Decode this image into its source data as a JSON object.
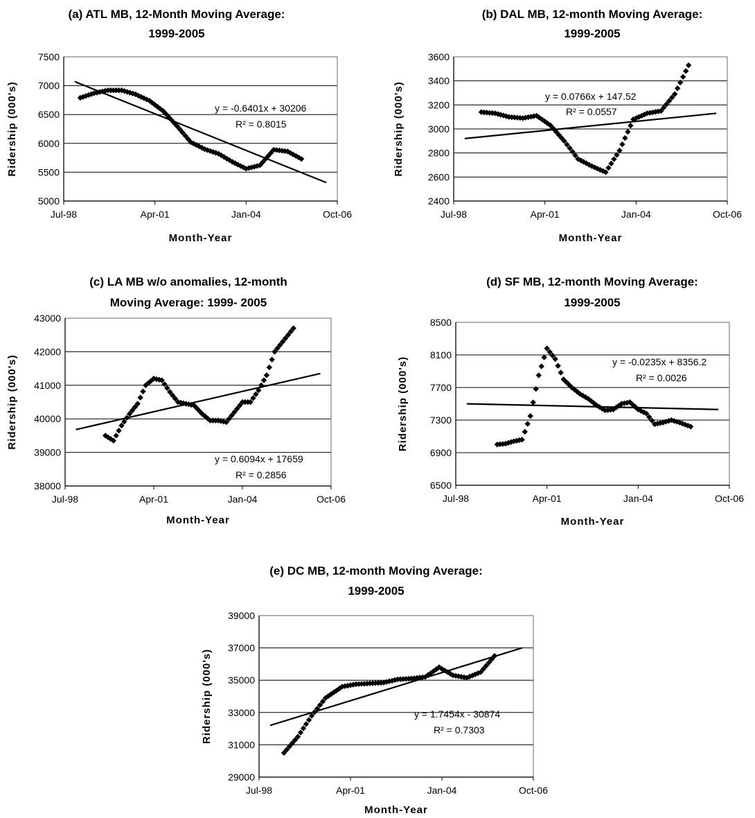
{
  "chart_data": [
    {
      "type": "scatter",
      "title_lines": [
        "(a) ATL MB, 12-Month Moving Average:",
        "1999-2005"
      ],
      "xlabel": "Month-Year",
      "ylabel": "Ridership (000's)",
      "x_ticks": [
        "Jul-98",
        "Apr-01",
        "Jan-04",
        "Oct-06"
      ],
      "y_ticks": [
        "5000",
        "5500",
        "6000",
        "6500",
        "7000",
        "7500"
      ],
      "ylim": [
        5000,
        7500
      ],
      "grid": "horizontal",
      "trend_equation": "y = -0.6401x + 30206",
      "r_squared": "R² = 0.8015",
      "trendline": {
        "x": [
          "1998-11",
          "2006-06"
        ],
        "y": [
          7070,
          5320
        ]
      },
      "series": [
        {
          "x": [
            "1999-01",
            "1999-06",
            "1999-11",
            "2000-04",
            "2000-09",
            "2001-02",
            "2001-07",
            "2001-12",
            "2002-05",
            "2002-10",
            "2003-03",
            "2003-08",
            "2004-01",
            "2004-06",
            "2004-11",
            "2005-04",
            "2005-09"
          ],
          "y": [
            6790,
            6870,
            6920,
            6920,
            6850,
            6740,
            6560,
            6300,
            6020,
            5900,
            5820,
            5680,
            5560,
            5620,
            5890,
            5860,
            5730
          ]
        }
      ]
    },
    {
      "type": "scatter",
      "title_lines": [
        "(b) DAL MB, 12-month Moving Average:",
        "1999-2005"
      ],
      "xlabel": "Month-Year",
      "ylabel": "Ridership (000's)",
      "x_ticks": [
        "Jul-98",
        "Apr-01",
        "Jan-04",
        "Oct-06"
      ],
      "y_ticks": [
        "2400",
        "2600",
        "2800",
        "3000",
        "3200",
        "3400",
        "3600"
      ],
      "ylim": [
        2400,
        3600
      ],
      "grid": "horizontal",
      "trend_equation": "y = 0.0766x + 147.52",
      "r_squared": "R² = 0.0557",
      "trendline": {
        "x": [
          "1998-11",
          "2006-06"
        ],
        "y": [
          2920,
          3130
        ]
      },
      "series": [
        {
          "x": [
            "1999-05",
            "1999-10",
            "2000-03",
            "2000-08",
            "2001-01",
            "2001-06",
            "2001-11",
            "2002-04",
            "2002-09",
            "2003-02",
            "2003-07",
            "2003-12",
            "2004-05",
            "2004-10",
            "2005-03",
            "2005-08"
          ],
          "y": [
            3140,
            3130,
            3100,
            3090,
            3110,
            3030,
            2900,
            2750,
            2690,
            2640,
            2820,
            3080,
            3130,
            3150,
            3290,
            3530
          ]
        }
      ]
    },
    {
      "type": "scatter",
      "title_lines": [
        "(c) LA MB w/o anomalies, 12-month",
        "Moving Average: 1999- 2005"
      ],
      "xlabel": "Month-Year",
      "ylabel": "Ridership (000's)",
      "x_ticks": [
        "Jul-98",
        "Apr-01",
        "Jan-04",
        "Oct-06"
      ],
      "y_ticks": [
        "38000",
        "39000",
        "40000",
        "41000",
        "42000",
        "43000"
      ],
      "ylim": [
        38000,
        43000
      ],
      "grid": "horizontal",
      "trend_equation": "y = 0.6094x + 17659",
      "r_squared": "R² = 0.2856",
      "trendline": {
        "x": [
          "1998-11",
          "2006-06"
        ],
        "y": [
          39680,
          41350
        ]
      },
      "series": [
        {
          "x": [
            "1999-10",
            "2000-01",
            "2000-04",
            "2000-07",
            "2000-10",
            "2001-01",
            "2001-04",
            "2001-07",
            "2001-10",
            "2002-01",
            "2002-04",
            "2002-07",
            "2002-10",
            "2003-01",
            "2003-04",
            "2003-07",
            "2003-10",
            "2004-01",
            "2004-04",
            "2004-07",
            "2004-10",
            "2005-01",
            "2005-04",
            "2005-08"
          ],
          "y": [
            39500,
            39350,
            39800,
            40150,
            40450,
            41000,
            41200,
            41150,
            40800,
            40500,
            40450,
            40400,
            40150,
            39950,
            39950,
            39900,
            40200,
            40500,
            40500,
            40850,
            41300,
            42000,
            42300,
            42700
          ]
        }
      ]
    },
    {
      "type": "scatter",
      "title_lines": [
        "(d) SF MB, 12-month Moving Average:",
        "1999-2005"
      ],
      "xlabel": "Month-Year",
      "ylabel": "Ridership (000's)",
      "x_ticks": [
        "Jul-98",
        "Apr-01",
        "Jan-04",
        "Oct-06"
      ],
      "y_ticks": [
        "6500",
        "6900",
        "7300",
        "7700",
        "8100",
        "8500"
      ],
      "ylim": [
        6500,
        8500
      ],
      "grid": "horizontal",
      "trend_equation": "y = -0.0235x + 8356.2",
      "r_squared": "R² = 0.0026",
      "trendline": {
        "x": [
          "1998-11",
          "2006-06"
        ],
        "y": [
          7500,
          7430
        ]
      },
      "series": [
        {
          "x": [
            "1999-10",
            "2000-01",
            "2000-04",
            "2000-07",
            "2000-10",
            "2001-01",
            "2001-04",
            "2001-07",
            "2001-10",
            "2002-01",
            "2002-04",
            "2002-07",
            "2002-10",
            "2003-01",
            "2003-04",
            "2003-07",
            "2003-10",
            "2004-01",
            "2004-04",
            "2004-07",
            "2004-10",
            "2005-01",
            "2005-04",
            "2005-08"
          ],
          "y": [
            7000,
            7010,
            7040,
            7060,
            7350,
            7850,
            8180,
            8050,
            7800,
            7700,
            7620,
            7560,
            7480,
            7420,
            7430,
            7500,
            7520,
            7430,
            7380,
            7250,
            7270,
            7300,
            7270,
            7220
          ]
        }
      ]
    },
    {
      "type": "scatter",
      "title_lines": [
        "(e) DC MB, 12-month Moving Average:",
        "1999-2005"
      ],
      "xlabel": "Month-Year",
      "ylabel": "Ridership (000's)",
      "x_ticks": [
        "Jul-98",
        "Apr-01",
        "Jan-04",
        "Oct-06"
      ],
      "y_ticks": [
        "29000",
        "31000",
        "33000",
        "35000",
        "37000",
        "39000"
      ],
      "ylim": [
        29000,
        39000
      ],
      "grid": "horizontal",
      "trend_equation": "y = 1.7454x - 30874",
      "r_squared": "R² = 0.7303",
      "trendline": {
        "x": [
          "1998-11",
          "2006-06"
        ],
        "y": [
          32200,
          37000
        ]
      },
      "series": [
        {
          "x": [
            "1999-04",
            "1999-09",
            "2000-02",
            "2000-07",
            "2001-01",
            "2001-06",
            "2001-11",
            "2002-04",
            "2002-09",
            "2003-02",
            "2003-07",
            "2003-12",
            "2004-05",
            "2004-10",
            "2005-03",
            "2005-08"
          ],
          "y": [
            30500,
            31500,
            32800,
            33900,
            34600,
            34750,
            34800,
            34850,
            35050,
            35100,
            35200,
            35800,
            35300,
            35150,
            35500,
            36500
          ]
        }
      ]
    }
  ]
}
